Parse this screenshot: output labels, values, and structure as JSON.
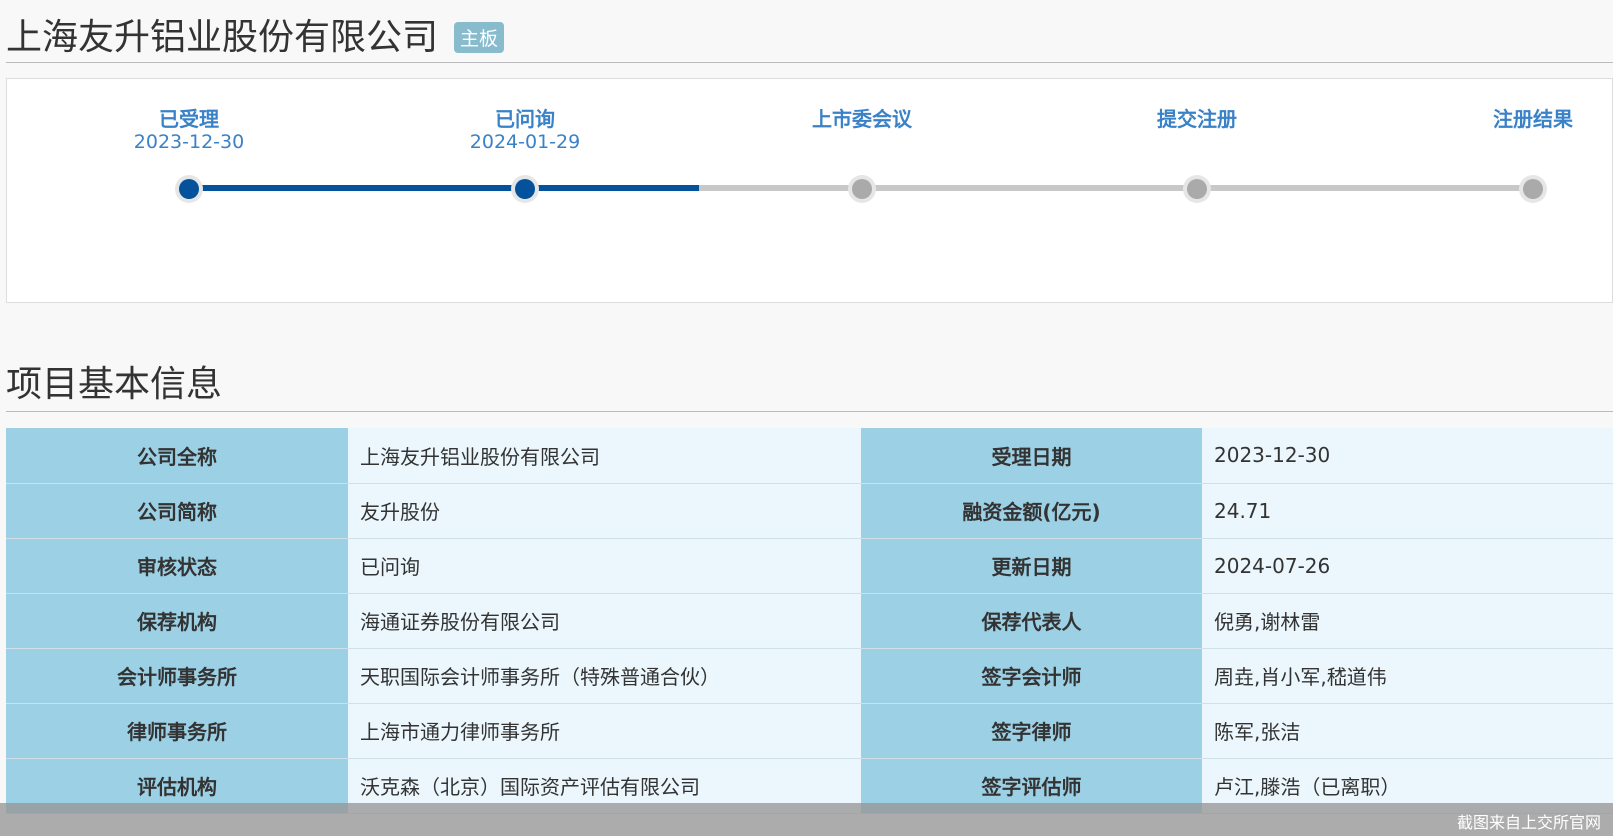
{
  "header": {
    "title": "上海友升铝业股份有限公司",
    "board_badge": "主板"
  },
  "progress": {
    "steps": [
      {
        "label": "已受理",
        "date": "2023-12-30",
        "done": true
      },
      {
        "label": "已问询",
        "date": "2024-01-29",
        "done": true
      },
      {
        "label": "上市委会议",
        "date": "",
        "done": false
      },
      {
        "label": "提交注册",
        "date": "",
        "done": false
      },
      {
        "label": "注册结果",
        "date": "",
        "done": false
      }
    ],
    "completed_color": "#03529b",
    "pending_color": "#aaaaaa"
  },
  "section": {
    "title": "项目基本信息"
  },
  "info": {
    "rows": [
      {
        "k1": "公司全称",
        "v1": "上海友升铝业股份有限公司",
        "k2": "受理日期",
        "v2": "2023-12-30"
      },
      {
        "k1": "公司简称",
        "v1": "友升股份",
        "k2": "融资金额(亿元)",
        "v2": "24.71"
      },
      {
        "k1": "审核状态",
        "v1": "已问询",
        "k2": "更新日期",
        "v2": "2024-07-26"
      },
      {
        "k1": "保荐机构",
        "v1": "海通证券股份有限公司",
        "k2": "保荐代表人",
        "v2": "倪勇,谢林雷"
      },
      {
        "k1": "会计师事务所",
        "v1": "天职国际会计师事务所（特殊普通合伙）",
        "k2": "签字会计师",
        "v2": "周垚,肖小军,嵇道伟"
      },
      {
        "k1": "律师事务所",
        "v1": "上海市通力律师事务所",
        "k2": "签字律师",
        "v2": "陈军,张洁"
      },
      {
        "k1": "评估机构",
        "v1": "沃克森（北京）国际资产评估有限公司",
        "k2": "签字评估师",
        "v2": "卢江,滕浩（已离职）"
      }
    ]
  },
  "watermark": "截图来自上交所官网"
}
